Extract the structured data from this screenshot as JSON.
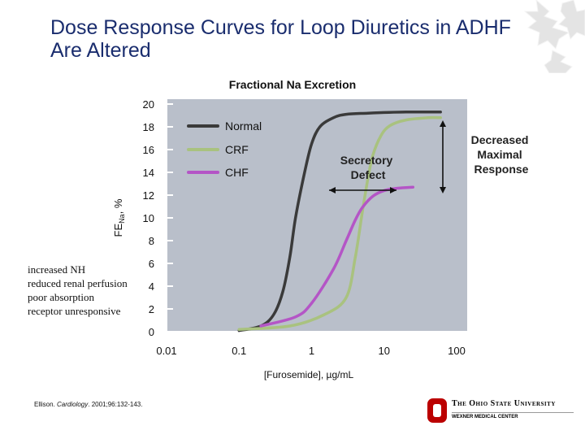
{
  "slide": {
    "title": "Dose Response Curves for Loop Diuretics in ADHF Are Altered"
  },
  "notes": [
    "increased NH",
    "reduced renal perfusion",
    "poor absorption",
    "receptor unresponsive"
  ],
  "citation": {
    "author": "Ellison. ",
    "journal": "Cardiology",
    "rest": ". 2001;96:132-143."
  },
  "logo": {
    "name": "The Ohio State University",
    "subtitle": "WEXNER MEDICAL CENTER",
    "color": "#bb0000"
  },
  "chart_data": {
    "type": "line",
    "title": "Fractional Na Excretion",
    "xlabel": "[Furosemide], µg/mL",
    "ylabel_main": "FE",
    "ylabel_sub": "Na",
    "ylabel_suffix": ", %",
    "x_scale": "log",
    "xlim": [
      0.01,
      100
    ],
    "ylim": [
      0,
      20
    ],
    "x_ticks": [
      0.01,
      0.1,
      1,
      10,
      100
    ],
    "x_tick_labels": [
      "0.01",
      "0.1",
      "1",
      "10",
      "100"
    ],
    "y_ticks": [
      0,
      2,
      4,
      6,
      8,
      10,
      12,
      14,
      16,
      18,
      20
    ],
    "y_tick_labels": [
      "0",
      "2",
      "4",
      "6",
      "8",
      "10",
      "12",
      "14",
      "16",
      "18",
      "20"
    ],
    "background": "#b9bfca",
    "legend_position": "top-left",
    "series": [
      {
        "name": "Normal",
        "color": "#3a3a3a",
        "x": [
          0.1,
          0.2,
          0.3,
          0.4,
          0.5,
          0.6,
          0.8,
          1,
          1.3,
          2,
          3,
          6,
          20,
          60
        ],
        "y": [
          0.1,
          0.5,
          1.5,
          3.5,
          6.5,
          10,
          14,
          16.5,
          18,
          18.8,
          19.1,
          19.2,
          19.3,
          19.3
        ]
      },
      {
        "name": "CRF",
        "color": "#a9c27f",
        "x": [
          0.1,
          0.5,
          1.5,
          3,
          4,
          5,
          6,
          7,
          9,
          12,
          20,
          40,
          60
        ],
        "y": [
          0.2,
          0.5,
          1.5,
          3,
          6.5,
          10.5,
          13.5,
          15.5,
          17.2,
          18.1,
          18.6,
          18.8,
          18.8
        ]
      },
      {
        "name": "CHF",
        "color": "#b455c6",
        "x": [
          0.2,
          0.6,
          1,
          2,
          3,
          4,
          5,
          7,
          10,
          15,
          25
        ],
        "y": [
          0.5,
          1.3,
          2.5,
          5.5,
          8,
          9.8,
          10.9,
          11.9,
          12.4,
          12.6,
          12.7
        ]
      }
    ],
    "annotations": {
      "secretory_defect": [
        "Secretory",
        "Defect"
      ],
      "decreased_maximal": [
        "Decreased",
        "Maximal",
        "Response"
      ]
    }
  }
}
